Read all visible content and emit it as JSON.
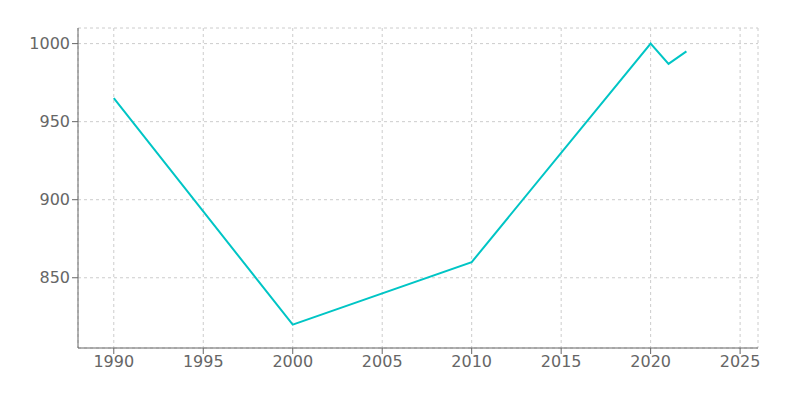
{
  "chart_data": {
    "type": "line",
    "x": [
      1990,
      2000,
      2010,
      2020,
      2021,
      2022
    ],
    "values": [
      965,
      820,
      860,
      1000,
      987,
      995
    ],
    "color": "#00C5C5",
    "xlim": [
      1988,
      2026
    ],
    "ylim": [
      805,
      1010
    ],
    "xticks": [
      1990,
      1995,
      2000,
      2005,
      2010,
      2015,
      2020,
      2025
    ],
    "yticks": [
      850,
      900,
      950,
      1000
    ],
    "grid": true
  }
}
